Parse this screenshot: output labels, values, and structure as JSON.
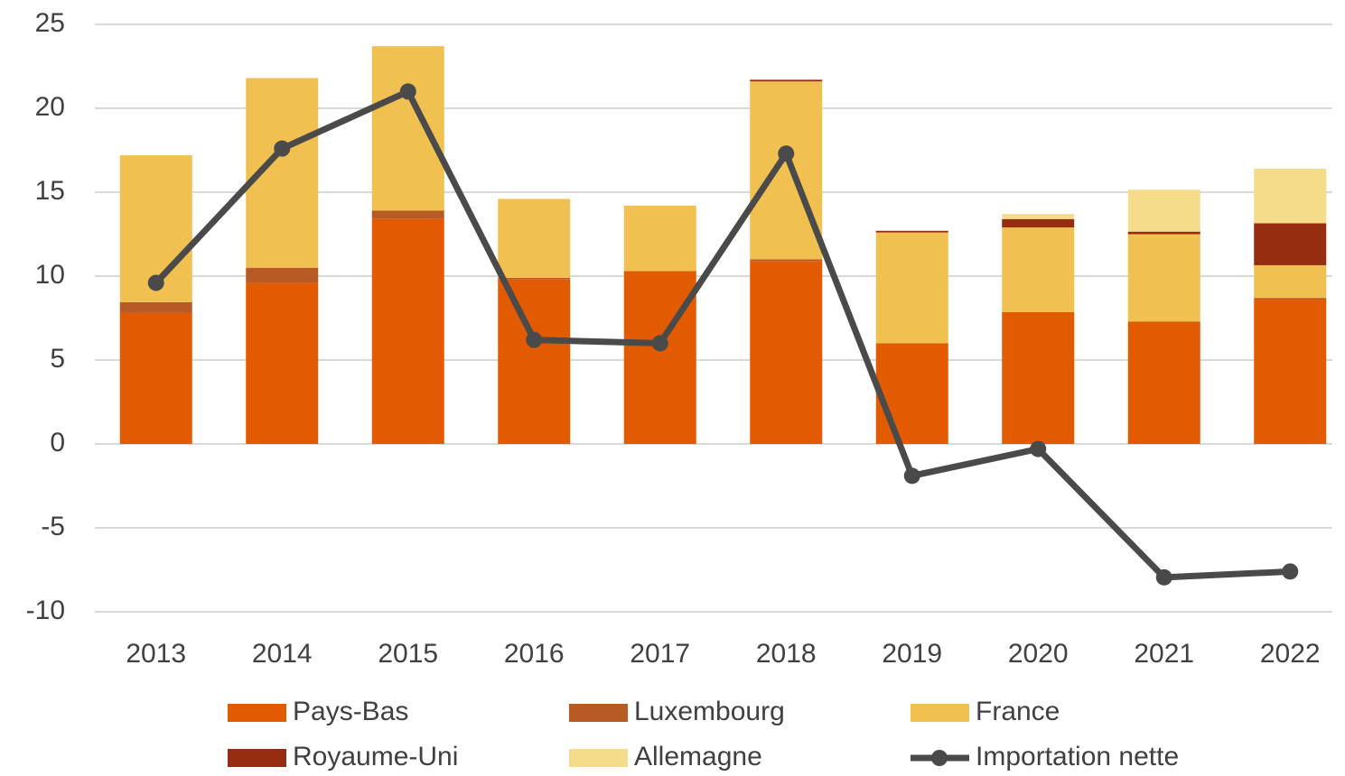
{
  "chart_data": {
    "type": "bar",
    "stacked": true,
    "categories": [
      "2013",
      "2014",
      "2015",
      "2016",
      "2017",
      "2018",
      "2019",
      "2020",
      "2021",
      "2022"
    ],
    "series": [
      {
        "name": "Pays-Bas",
        "color": "#e35b00",
        "values": [
          7.8,
          9.6,
          13.4,
          9.8,
          10.3,
          10.9,
          6.0,
          7.85,
          7.3,
          8.6
        ]
      },
      {
        "name": "Luxembourg",
        "color": "#b85a24",
        "values": [
          0.65,
          0.9,
          0.5,
          0.1,
          0,
          0.1,
          0,
          0,
          0,
          0.1
        ]
      },
      {
        "name": "France",
        "color": "#f0c050",
        "values": [
          8.75,
          11.3,
          9.8,
          4.7,
          3.9,
          10.6,
          6.6,
          5.05,
          5.2,
          1.95
        ]
      },
      {
        "name": "Royaume-Uni",
        "color": "#962c10",
        "values": [
          0,
          0,
          0,
          0,
          0,
          0.1,
          0.1,
          0.5,
          0.15,
          2.5
        ]
      },
      {
        "name": "Allemagne",
        "color": "#f5dc8a",
        "values": [
          0,
          0,
          0,
          0,
          0,
          0,
          0,
          0.3,
          2.5,
          3.25
        ]
      },
      {
        "name": "Importation nette",
        "type": "line",
        "color": "#4a4a4a",
        "values": [
          9.6,
          17.6,
          21.0,
          6.2,
          6.0,
          17.3,
          -1.9,
          -0.3,
          -7.95,
          -7.6
        ]
      }
    ],
    "ylim": [
      -10,
      25
    ],
    "yticks": [
      -10,
      -5,
      0,
      5,
      10,
      15,
      20,
      25
    ],
    "grid": true,
    "legend": "bottom"
  }
}
